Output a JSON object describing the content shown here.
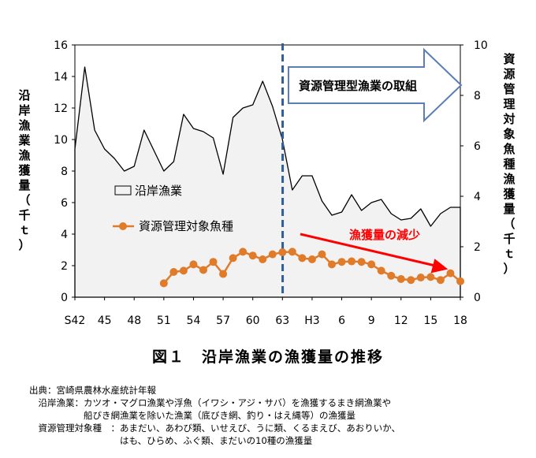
{
  "chart_data": {
    "type": "line",
    "categories": [
      "S42",
      "",
      "",
      "45",
      "",
      "",
      "48",
      "",
      "",
      "51",
      "",
      "",
      "54",
      "",
      "",
      "57",
      "",
      "",
      "60",
      "",
      "",
      "63",
      "",
      "",
      "H3",
      "",
      "",
      "6",
      "",
      "",
      "9",
      "",
      "",
      "12",
      "",
      "",
      "15",
      "",
      "",
      "18"
    ],
    "tick_labels": [
      "S42",
      "45",
      "48",
      "51",
      "54",
      "57",
      "60",
      "63",
      "H3",
      "6",
      "9",
      "12",
      "15",
      "18"
    ],
    "series": [
      {
        "name": "沿岸漁業",
        "axis": "left",
        "style": "area",
        "values": [
          9.4,
          14.6,
          10.6,
          9.4,
          8.8,
          8.0,
          8.3,
          10.6,
          9.3,
          8.0,
          8.6,
          11.6,
          10.7,
          10.5,
          10.1,
          7.8,
          11.4,
          12.0,
          12.2,
          13.7,
          12.1,
          10.0,
          6.8,
          7.7,
          7.7,
          6.1,
          5.2,
          5.4,
          6.5,
          5.5,
          6.0,
          6.2,
          5.3,
          4.9,
          5.0,
          5.6,
          4.5,
          5.3,
          5.7,
          5.7
        ]
      },
      {
        "name": "資源管理対象魚種",
        "axis": "right",
        "style": "line-marker",
        "values": [
          null,
          null,
          null,
          null,
          null,
          null,
          null,
          null,
          null,
          0.55,
          1.0,
          1.05,
          1.3,
          1.08,
          1.4,
          0.92,
          1.55,
          1.8,
          1.65,
          1.5,
          1.7,
          1.78,
          1.8,
          1.55,
          1.5,
          1.7,
          1.3,
          1.4,
          1.42,
          1.4,
          1.3,
          1.05,
          0.85,
          0.72,
          0.68,
          0.78,
          0.8,
          0.68,
          0.95,
          0.63
        ]
      }
    ],
    "y_left": {
      "min": 0,
      "max": 16,
      "ticks": [
        0,
        2,
        4,
        6,
        8,
        10,
        12,
        14,
        16
      ]
    },
    "y_right": {
      "min": 0,
      "max": 10,
      "ticks": [
        0,
        2,
        4,
        6,
        8,
        10
      ]
    },
    "ylabel_left": "沿岸漁業漁獲量（千ｔ）",
    "ylabel_right": "資源管理対象魚種漁獲量（千ｔ）",
    "divider_label": "資源管理型漁業の取組",
    "trend_label": "漁獲量の減少",
    "legend_position": "center-left",
    "grid": false
  },
  "colors": {
    "area_fill": "#f2f2f2",
    "line": "#000000",
    "marker": "#e07b2a",
    "divider": "#2e5e9a",
    "arrow_stroke": "#5a7fb5",
    "trend": "#ff0000"
  },
  "figure_title": "図１　沿岸漁業の漁獲量の推移",
  "notes": [
    "出典：宮崎県農林水産統計年報",
    "　沿岸漁業：カツオ・マグロ漁業や浮魚（イワシ・アジ・サバ）を漁獲するまき網漁業や",
    "　　　　　　船びき網漁業を除いた漁業（底びき網、釣り・はえ縄等）の漁獲量",
    "　資源管理対象種　：あまだい、あわび類、いせえび、うに類、くるまえび、あおりいか、",
    "　　　　　　　　　　はも、ひらめ、ふぐ類、まだいの10種の漁獲量"
  ]
}
